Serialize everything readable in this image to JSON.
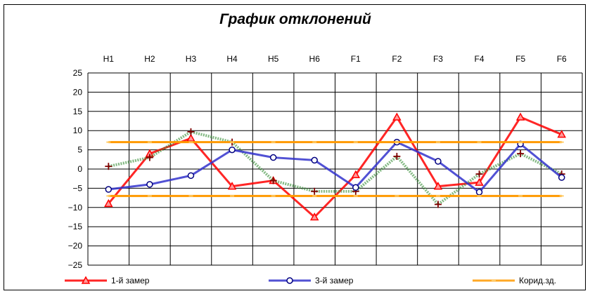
{
  "chart_data": {
    "type": "line",
    "title": "График отклонений",
    "categories": [
      "H1",
      "H2",
      "H3",
      "H4",
      "H5",
      "H6",
      "F1",
      "F2",
      "F3",
      "F4",
      "F5",
      "F6"
    ],
    "ylim": [
      -25,
      25
    ],
    "yticks": [
      25,
      20,
      15,
      10,
      5,
      0,
      -5,
      -10,
      -15,
      -20,
      -25
    ],
    "grid": true,
    "legend_position": "bottom",
    "series": [
      {
        "name": "1-й замер",
        "color": "#ff0000",
        "marker": "triangle",
        "values": [
          -9,
          4,
          8,
          -4.5,
          -3,
          -12.5,
          -1.5,
          13.5,
          -4.5,
          -3.5,
          13.5,
          9
        ]
      },
      {
        "name": "",
        "color": "#2e8b2e",
        "marker": "plus",
        "values": [
          0.7,
          3,
          9.7,
          7,
          -3,
          -5.8,
          -5.8,
          3.3,
          -9.2,
          -1.3,
          4,
          -1.3
        ]
      },
      {
        "name": "3-й замер",
        "color": "#3333cc",
        "marker": "circle",
        "values": [
          -5.3,
          -4,
          -1.7,
          5,
          3,
          2.3,
          -4.8,
          7,
          2,
          -6,
          6.5,
          -2.2
        ]
      },
      {
        "name": "Корид.зд.",
        "color": "#ff9900",
        "marker": "dash",
        "values": [
          7,
          7,
          7,
          7,
          7,
          7,
          7,
          7,
          7,
          7,
          7,
          7
        ]
      },
      {
        "name": "",
        "color": "#ff9900",
        "marker": "dash",
        "values": [
          -7,
          -7,
          -7,
          -7,
          -7,
          -7,
          -7,
          -7,
          -7,
          -7,
          -7,
          -7
        ]
      }
    ]
  }
}
